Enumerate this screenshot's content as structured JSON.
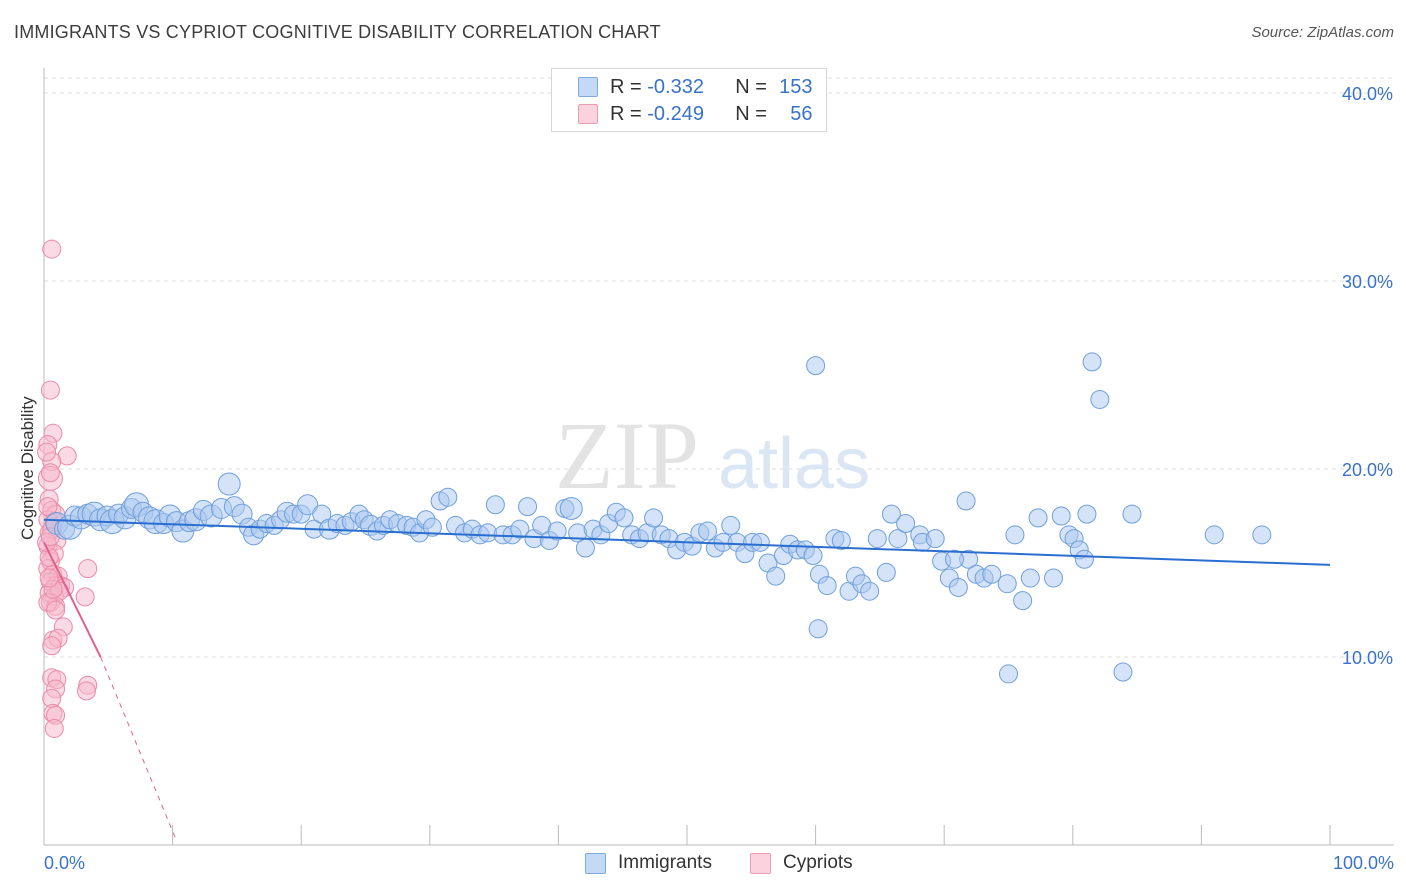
{
  "header": {
    "title": "IMMIGRANTS VS CYPRIOT COGNITIVE DISABILITY CORRELATION CHART",
    "source": "Source: ZipAtlas.com"
  },
  "legend": {
    "immigrants": {
      "r_label": "R =",
      "r_value": "-0.332",
      "n_label": "N =",
      "n_value": "153"
    },
    "cypriots": {
      "r_label": "R =",
      "r_value": "-0.249",
      "n_label": "N =",
      "n_value": "56"
    },
    "bottom_immigrants": "Immigrants",
    "bottom_cypriots": "Cypriots"
  },
  "watermark": {
    "zip": "ZIP",
    "atlas": "atlas"
  },
  "colors": {
    "immigrants_fill": "#a9c8f0",
    "immigrants_stroke": "#6f9fdc",
    "immigrants_line": "#2a6fcf",
    "cypriots_fill": "#f6b8cb",
    "cypriots_stroke": "#ec8aa8",
    "cypriots_line": "#e0608c",
    "tick_text": "#3a72c8",
    "grid": "#dddddd"
  },
  "chart_data": {
    "type": "scatter",
    "title": "IMMIGRANTS VS CYPRIOT COGNITIVE DISABILITY CORRELATION CHART",
    "xlabel": "",
    "ylabel": "Cognitive Disability",
    "xlim": [
      0,
      100
    ],
    "ylim": [
      0,
      40.8
    ],
    "x_tick_labels": [
      "0.0%",
      "100.0%"
    ],
    "y_ticks": [
      10,
      20,
      30,
      40
    ],
    "y_tick_labels": [
      "10.0%",
      "20.0%",
      "30.0%",
      "40.0%"
    ],
    "grid": true,
    "series": [
      {
        "name": "Immigrants",
        "r": -0.332,
        "n": 153,
        "trend": {
          "x0": 0,
          "y0": 17.3,
          "x1": 100,
          "y1": 14.9
        },
        "points": [
          [
            1.0,
            17.1,
            11
          ],
          [
            1.6,
            16.8,
            10
          ],
          [
            2.0,
            16.9,
            12
          ],
          [
            2.4,
            17.5,
            10
          ],
          [
            2.9,
            17.4,
            11
          ],
          [
            3.4,
            17.6,
            10
          ],
          [
            3.9,
            17.6,
            12
          ],
          [
            4.4,
            17.3,
            11
          ],
          [
            4.9,
            17.5,
            10
          ],
          [
            5.3,
            17.2,
            12
          ],
          [
            5.8,
            17.6,
            10
          ],
          [
            6.3,
            17.4,
            11
          ],
          [
            6.8,
            17.9,
            10
          ],
          [
            7.2,
            18.1,
            12
          ],
          [
            7.7,
            17.7,
            10
          ],
          [
            8.2,
            17.4,
            11
          ],
          [
            8.7,
            17.2,
            12
          ],
          [
            9.3,
            17.1,
            10
          ],
          [
            9.8,
            17.5,
            11
          ],
          [
            10.3,
            17.2,
            10
          ],
          [
            10.8,
            16.7,
            11
          ],
          [
            11.3,
            17.2,
            10
          ],
          [
            11.8,
            17.3,
            11
          ],
          [
            12.4,
            17.8,
            10
          ],
          [
            13.0,
            17.5,
            11
          ],
          [
            13.8,
            17.9,
            10
          ],
          [
            14.4,
            19.2,
            11
          ],
          [
            14.8,
            18.0,
            10
          ],
          [
            15.4,
            17.6,
            10
          ],
          [
            15.9,
            16.9,
            9
          ],
          [
            16.3,
            16.5,
            10
          ],
          [
            16.8,
            16.8,
            9
          ],
          [
            17.3,
            17.1,
            9
          ],
          [
            17.9,
            17.0,
            9
          ],
          [
            18.4,
            17.3,
            9
          ],
          [
            18.9,
            17.7,
            10
          ],
          [
            19.4,
            17.6,
            9
          ],
          [
            20.0,
            17.6,
            9
          ],
          [
            20.5,
            18.1,
            10
          ],
          [
            21.0,
            16.8,
            9
          ],
          [
            21.6,
            17.6,
            9
          ],
          [
            22.2,
            16.8,
            10
          ],
          [
            22.8,
            17.1,
            9
          ],
          [
            23.4,
            17.0,
            9
          ],
          [
            23.9,
            17.2,
            9
          ],
          [
            24.5,
            17.6,
            9
          ],
          [
            24.9,
            17.3,
            9
          ],
          [
            25.4,
            17.0,
            10
          ],
          [
            25.9,
            16.7,
            9
          ],
          [
            26.4,
            17.0,
            9
          ],
          [
            26.9,
            17.3,
            9
          ],
          [
            27.5,
            17.1,
            9
          ],
          [
            28.2,
            17.0,
            9
          ],
          [
            28.7,
            16.9,
            9
          ],
          [
            29.2,
            16.6,
            9
          ],
          [
            29.7,
            17.3,
            9
          ],
          [
            30.2,
            16.9,
            9
          ],
          [
            30.8,
            18.3,
            9
          ],
          [
            31.4,
            18.5,
            9
          ],
          [
            32.0,
            17.0,
            9
          ],
          [
            32.7,
            16.6,
            9
          ],
          [
            33.3,
            16.8,
            9
          ],
          [
            33.9,
            16.5,
            9
          ],
          [
            34.5,
            16.6,
            9
          ],
          [
            35.1,
            18.1,
            9
          ],
          [
            35.7,
            16.5,
            9
          ],
          [
            36.4,
            16.5,
            9
          ],
          [
            37.0,
            16.8,
            9
          ],
          [
            37.6,
            18.0,
            9
          ],
          [
            38.1,
            16.3,
            9
          ],
          [
            38.7,
            17.0,
            9
          ],
          [
            39.3,
            16.2,
            9
          ],
          [
            39.9,
            16.7,
            9
          ],
          [
            40.5,
            17.9,
            9
          ],
          [
            41.0,
            17.9,
            11
          ],
          [
            41.5,
            16.6,
            9
          ],
          [
            42.1,
            15.8,
            9
          ],
          [
            42.7,
            16.8,
            9
          ],
          [
            43.3,
            16.5,
            9
          ],
          [
            43.9,
            17.1,
            9
          ],
          [
            44.5,
            17.7,
            9
          ],
          [
            45.1,
            17.4,
            9
          ],
          [
            45.7,
            16.5,
            9
          ],
          [
            46.3,
            16.3,
            9
          ],
          [
            46.9,
            16.6,
            9
          ],
          [
            47.4,
            17.4,
            9
          ],
          [
            48.0,
            16.5,
            9
          ],
          [
            48.6,
            16.3,
            9
          ],
          [
            49.2,
            15.7,
            9
          ],
          [
            49.8,
            16.1,
            9
          ],
          [
            50.4,
            15.9,
            9
          ],
          [
            51.0,
            16.6,
            9
          ],
          [
            51.6,
            16.7,
            9
          ],
          [
            52.2,
            15.8,
            9
          ],
          [
            52.8,
            16.1,
            9
          ],
          [
            53.4,
            17.0,
            9
          ],
          [
            53.9,
            16.1,
            9
          ],
          [
            54.5,
            15.5,
            9
          ],
          [
            55.1,
            16.1,
            9
          ],
          [
            55.7,
            16.1,
            9
          ],
          [
            56.3,
            15.0,
            9
          ],
          [
            56.9,
            14.3,
            9
          ],
          [
            57.5,
            15.4,
            9
          ],
          [
            58.0,
            16.0,
            9
          ],
          [
            58.6,
            15.7,
            9
          ],
          [
            59.2,
            15.7,
            9
          ],
          [
            59.8,
            15.4,
            9
          ],
          [
            60.3,
            14.4,
            9
          ],
          [
            60.9,
            13.8,
            9
          ],
          [
            61.5,
            16.3,
            9
          ],
          [
            62.0,
            16.2,
            9
          ],
          [
            62.6,
            13.5,
            9
          ],
          [
            63.1,
            14.3,
            9
          ],
          [
            63.6,
            13.9,
            9
          ],
          [
            64.2,
            13.5,
            9
          ],
          [
            64.8,
            16.3,
            9
          ],
          [
            65.5,
            14.5,
            9
          ],
          [
            65.9,
            17.6,
            9
          ],
          [
            66.4,
            16.3,
            9
          ],
          [
            67.0,
            17.1,
            9
          ],
          [
            68.1,
            16.5,
            9
          ],
          [
            68.3,
            16.1,
            9
          ],
          [
            69.3,
            16.3,
            9
          ],
          [
            69.8,
            15.1,
            9
          ],
          [
            70.4,
            14.2,
            9
          ],
          [
            71.1,
            13.7,
            9
          ],
          [
            71.7,
            18.3,
            9
          ],
          [
            71.9,
            15.2,
            9
          ],
          [
            72.5,
            14.4,
            9
          ],
          [
            73.1,
            14.2,
            9
          ],
          [
            73.7,
            14.4,
            9
          ],
          [
            74.9,
            13.9,
            9
          ],
          [
            75.5,
            16.5,
            9
          ],
          [
            76.1,
            13.0,
            9
          ],
          [
            76.7,
            14.2,
            9
          ],
          [
            77.3,
            17.4,
            9
          ],
          [
            78.5,
            14.2,
            9
          ],
          [
            79.1,
            17.5,
            9
          ],
          [
            79.7,
            16.5,
            9
          ],
          [
            80.1,
            16.3,
            9
          ],
          [
            80.5,
            15.7,
            9
          ],
          [
            80.9,
            15.2,
            9
          ],
          [
            81.1,
            17.6,
            9
          ],
          [
            84.6,
            17.6,
            9
          ],
          [
            75.0,
            9.1,
            9
          ],
          [
            81.5,
            25.7,
            9
          ],
          [
            82.1,
            23.7,
            9
          ],
          [
            60.0,
            25.5,
            9
          ],
          [
            60.2,
            11.5,
            9
          ],
          [
            83.9,
            9.2,
            9
          ],
          [
            91.0,
            16.5,
            9
          ],
          [
            94.7,
            16.5,
            9
          ],
          [
            70.8,
            15.2,
            9
          ]
        ]
      },
      {
        "name": "Cypriots",
        "r": -0.249,
        "n": 56,
        "trend": {
          "x0": 0,
          "y0": 16.1,
          "x1": 4.4,
          "y1": 10.0,
          "dash_x1": 10.2,
          "dash_y1": 0.4
        },
        "points": [
          [
            0.6,
            31.7,
            9
          ],
          [
            0.5,
            24.2,
            9
          ],
          [
            0.7,
            21.9,
            9
          ],
          [
            0.3,
            21.3,
            9
          ],
          [
            1.8,
            20.7,
            9
          ],
          [
            0.6,
            20.4,
            9
          ],
          [
            0.5,
            19.5,
            12
          ],
          [
            0.4,
            18.4,
            9
          ],
          [
            0.6,
            17.8,
            9
          ],
          [
            0.9,
            17.6,
            9
          ],
          [
            0.3,
            17.3,
            9
          ],
          [
            0.7,
            16.9,
            9
          ],
          [
            0.4,
            16.6,
            9
          ],
          [
            1.0,
            16.2,
            9
          ],
          [
            0.3,
            15.9,
            9
          ],
          [
            0.8,
            15.5,
            9
          ],
          [
            0.5,
            15.1,
            9
          ],
          [
            0.3,
            14.7,
            9
          ],
          [
            3.4,
            14.7,
            9
          ],
          [
            0.7,
            14.4,
            9
          ],
          [
            1.1,
            14.3,
            9
          ],
          [
            0.5,
            14.0,
            9
          ],
          [
            0.9,
            13.8,
            9
          ],
          [
            1.3,
            13.8,
            9
          ],
          [
            1.6,
            13.7,
            9
          ],
          [
            0.4,
            13.4,
            9
          ],
          [
            0.8,
            13.2,
            9
          ],
          [
            1.2,
            13.5,
            9
          ],
          [
            3.2,
            13.2,
            9
          ],
          [
            0.5,
            12.9,
            9
          ],
          [
            0.9,
            12.7,
            9
          ],
          [
            1.5,
            11.6,
            9
          ],
          [
            0.7,
            10.9,
            9
          ],
          [
            1.1,
            11.0,
            9
          ],
          [
            0.6,
            10.6,
            9
          ],
          [
            0.6,
            8.9,
            9
          ],
          [
            1.0,
            8.8,
            9
          ],
          [
            0.9,
            8.3,
            9
          ],
          [
            3.4,
            8.5,
            9
          ],
          [
            3.3,
            8.2,
            9
          ],
          [
            0.6,
            7.8,
            9
          ],
          [
            0.7,
            7.0,
            9
          ],
          [
            0.9,
            6.9,
            9
          ],
          [
            0.8,
            6.2,
            9
          ],
          [
            0.3,
            12.9,
            9
          ],
          [
            0.4,
            15.3,
            9
          ],
          [
            0.6,
            16.8,
            9
          ],
          [
            0.8,
            17.2,
            9
          ],
          [
            0.2,
            16.1,
            9
          ],
          [
            0.3,
            18.0,
            9
          ],
          [
            0.5,
            19.8,
            9
          ],
          [
            0.2,
            20.9,
            9
          ],
          [
            0.7,
            13.6,
            9
          ],
          [
            0.4,
            14.2,
            9
          ],
          [
            0.9,
            12.5,
            9
          ],
          [
            0.5,
            16.4,
            9
          ]
        ]
      }
    ]
  }
}
